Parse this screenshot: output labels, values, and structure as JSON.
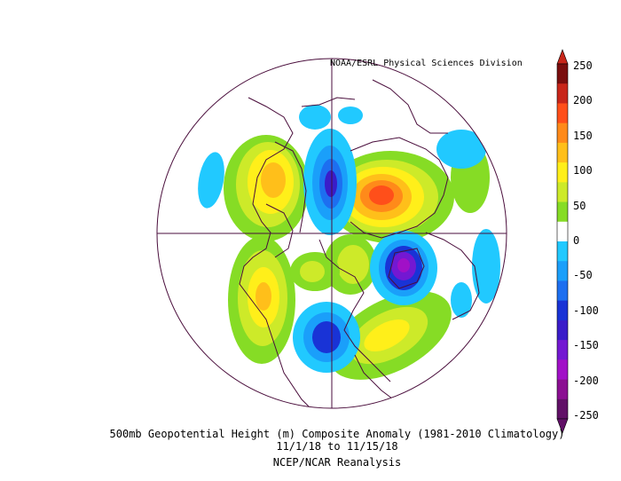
{
  "header": {
    "credit": "NOAA/ESRL Physical Sciences Division"
  },
  "caption": {
    "line1": "500mb Geopotential Height (m) Composite Anomaly (1981-2010 Climatology)",
    "line2": "11/1/18  to 11/15/18",
    "line3": "NCEP/NCAR Reanalysis"
  },
  "colorbar": {
    "labels": [
      "250",
      "200",
      "150",
      "100",
      "50",
      "0",
      "-50",
      "-100",
      "-150",
      "-200",
      "-250"
    ],
    "colors": [
      "#7a0e0e",
      "#c8261a",
      "#ff4f1a",
      "#ff8a1a",
      "#ffbf1a",
      "#ffef1a",
      "#cdea29",
      "#86dc25",
      "#ffffff",
      "#21c9ff",
      "#1a9ffa",
      "#1d6ff0",
      "#1933d6",
      "#3a1cc9",
      "#7318d2",
      "#a110c7",
      "#8b0f92",
      "#611067"
    ]
  },
  "colors": {
    "map_outline": "#4a0e3c",
    "continents": "#4a0e3c"
  }
}
